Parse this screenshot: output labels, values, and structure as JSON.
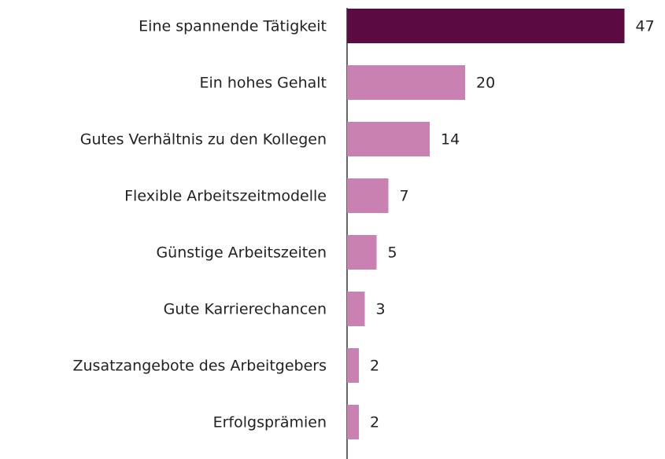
{
  "chart_data": {
    "type": "hbar",
    "categories": [
      "Eine spannende Tätigkeit",
      "Ein hohes Gehalt",
      "Gutes Verhältnis zu den Kollegen",
      "Flexible Arbeitszeitmodelle",
      "Günstige Arbeitszeiten",
      "Gute Karrierechancen",
      "Zusatzangebote des Arbeitgebers",
      "Erfolgsprämien"
    ],
    "values": [
      47,
      20,
      14,
      7,
      5,
      3,
      2,
      2
    ],
    "colors": [
      "#5c0b42",
      "#c981b2",
      "#c981b2",
      "#c981b2",
      "#c981b2",
      "#c981b2",
      "#c981b2",
      "#c981b2"
    ],
    "xlim": [
      0,
      50
    ]
  }
}
